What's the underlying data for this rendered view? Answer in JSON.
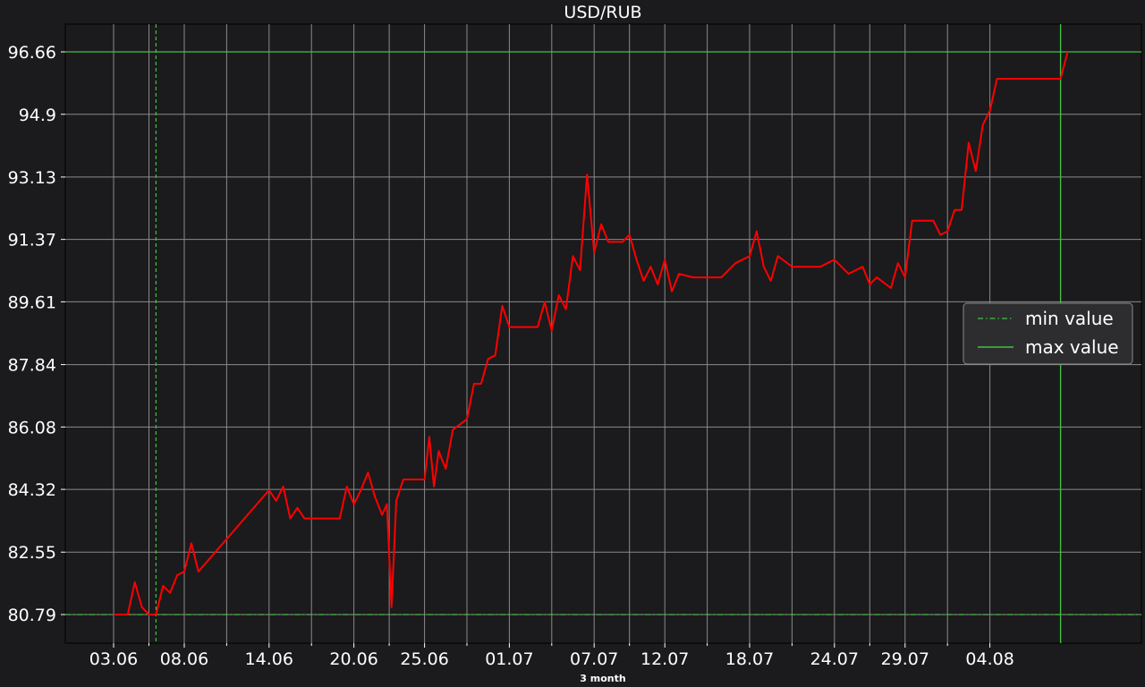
{
  "chart_data": {
    "type": "line",
    "title": "USD/RUB",
    "xlabel": "3 month",
    "ylabel": "",
    "x_ticks": [
      "03.06",
      "08.06",
      "14.06",
      "20.06",
      "25.06",
      "01.07",
      "07.07",
      "12.07",
      "18.07",
      "24.07",
      "29.07",
      "04.08"
    ],
    "y_ticks": [
      "80.79",
      "82.55",
      "84.32",
      "86.08",
      "87.84",
      "89.61",
      "91.37",
      "93.13",
      "94.9",
      "96.66"
    ],
    "ylim": [
      80.79,
      96.66
    ],
    "grid": true,
    "legend": {
      "placement": "right",
      "entries": [
        "min value",
        "max value"
      ]
    },
    "min_value": 80.79,
    "max_value": 96.66,
    "min_date": "06.06",
    "max_date": "09.08",
    "series": [
      {
        "color": "#ff0000",
        "points": [
          [
            "03.06",
            80.79
          ],
          [
            "04.06",
            80.79
          ],
          [
            "04.06",
            81.7
          ],
          [
            "05.06",
            81.0
          ],
          [
            "05.06",
            80.79
          ],
          [
            "06.06",
            80.79
          ],
          [
            "06.06",
            81.6
          ],
          [
            "07.06",
            81.4
          ],
          [
            "07.06",
            81.9
          ],
          [
            "08.06",
            82.0
          ],
          [
            "08.06",
            82.8
          ],
          [
            "09.06",
            82.0
          ],
          [
            "14.06",
            84.3
          ],
          [
            "14.06",
            84.0
          ],
          [
            "15.06",
            84.4
          ],
          [
            "15.06",
            83.5
          ],
          [
            "16.06",
            83.8
          ],
          [
            "16.06",
            83.5
          ],
          [
            "19.06",
            83.5
          ],
          [
            "19.06",
            84.4
          ],
          [
            "20.06",
            83.9
          ],
          [
            "20.06",
            84.3
          ],
          [
            "21.06",
            84.8
          ],
          [
            "21.06",
            84.1
          ],
          [
            "22.06",
            83.6
          ],
          [
            "22.06",
            83.9
          ],
          [
            "22.06",
            81.0
          ],
          [
            "23.06",
            84.0
          ],
          [
            "23.06",
            84.6
          ],
          [
            "25.06",
            84.6
          ],
          [
            "25.06",
            85.8
          ],
          [
            "25.06",
            84.4
          ],
          [
            "26.06",
            85.4
          ],
          [
            "26.06",
            84.9
          ],
          [
            "27.06",
            86.0
          ],
          [
            "28.06",
            86.3
          ],
          [
            "28.06",
            87.3
          ],
          [
            "29.06",
            87.3
          ],
          [
            "29.06",
            88.0
          ],
          [
            "30.06",
            88.1
          ],
          [
            "30.06",
            89.5
          ],
          [
            "01.07",
            88.9
          ],
          [
            "02.07",
            88.9
          ],
          [
            "03.07",
            88.9
          ],
          [
            "03.07",
            89.6
          ],
          [
            "04.07",
            88.8
          ],
          [
            "04.07",
            89.8
          ],
          [
            "05.07",
            89.4
          ],
          [
            "05.07",
            90.9
          ],
          [
            "06.07",
            90.5
          ],
          [
            "06.07",
            93.2
          ],
          [
            "07.07",
            91.0
          ],
          [
            "07.07",
            91.8
          ],
          [
            "08.07",
            91.3
          ],
          [
            "09.07",
            91.3
          ],
          [
            "09.07",
            91.5
          ],
          [
            "10.07",
            90.8
          ],
          [
            "10.07",
            90.2
          ],
          [
            "11.07",
            90.6
          ],
          [
            "11.07",
            90.1
          ],
          [
            "12.07",
            90.8
          ],
          [
            "12.07",
            89.9
          ],
          [
            "13.07",
            90.4
          ],
          [
            "14.07",
            90.3
          ],
          [
            "15.07",
            90.3
          ],
          [
            "16.07",
            90.3
          ],
          [
            "17.07",
            90.7
          ],
          [
            "18.07",
            90.9
          ],
          [
            "18.07",
            91.6
          ],
          [
            "19.07",
            90.6
          ],
          [
            "19.07",
            90.2
          ],
          [
            "20.07",
            90.9
          ],
          [
            "21.07",
            90.6
          ],
          [
            "22.07",
            90.6
          ],
          [
            "23.07",
            90.6
          ],
          [
            "24.07",
            90.8
          ],
          [
            "24.07",
            90.6
          ],
          [
            "25.07",
            90.4
          ],
          [
            "26.07",
            90.6
          ],
          [
            "26.07",
            90.1
          ],
          [
            "27.07",
            90.3
          ],
          [
            "28.07",
            90.0
          ],
          [
            "28.07",
            90.7
          ],
          [
            "29.07",
            90.3
          ],
          [
            "29.07",
            91.9
          ],
          [
            "30.07",
            91.9
          ],
          [
            "31.07",
            91.9
          ],
          [
            "31.07",
            91.5
          ],
          [
            "01.08",
            91.6
          ],
          [
            "01.08",
            92.2
          ],
          [
            "02.08",
            92.2
          ],
          [
            "02.08",
            94.1
          ],
          [
            "03.08",
            93.3
          ],
          [
            "03.08",
            94.6
          ],
          [
            "04.08",
            95.0
          ],
          [
            "04.08",
            95.9
          ],
          [
            "05.08",
            95.9
          ],
          [
            "06.08",
            95.9
          ],
          [
            "07.08",
            95.9
          ],
          [
            "08.08",
            95.9
          ],
          [
            "09.08",
            95.9
          ],
          [
            "09.08",
            96.66
          ]
        ]
      }
    ]
  },
  "colors": {
    "background": "#1b1a1c",
    "grid": "#8a8a8a",
    "line": "#ff0000",
    "min_line": "#43c043",
    "max_line": "#43c043"
  }
}
